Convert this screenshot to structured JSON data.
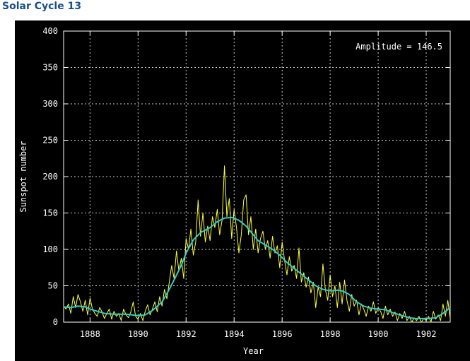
{
  "page": {
    "title": "Solar Cycle 13"
  },
  "chart_data": {
    "type": "line",
    "title": "",
    "xlabel": "Year",
    "ylabel": "Sunspot number",
    "annotation": "Amplitude = 146.5",
    "xlim": [
      1886.9,
      1903.0
    ],
    "ylim": [
      0,
      400
    ],
    "x_ticks": [
      1888,
      1890,
      1892,
      1894,
      1896,
      1898,
      1900,
      1902
    ],
    "y_ticks": [
      0,
      50,
      100,
      150,
      200,
      250,
      300,
      350,
      400
    ],
    "grid": true,
    "colors": {
      "background": "#000000",
      "monthly": "#ffff33",
      "smoothed": "#33cccc",
      "text": "#ffffff",
      "grid": "#cccccc"
    },
    "series": [
      {
        "key": "monthly",
        "points": [
          [
            1886.9,
            22
          ],
          [
            1887.0,
            18
          ],
          [
            1887.1,
            25
          ],
          [
            1887.2,
            12
          ],
          [
            1887.3,
            35
          ],
          [
            1887.4,
            20
          ],
          [
            1887.5,
            38
          ],
          [
            1887.6,
            28
          ],
          [
            1887.7,
            15
          ],
          [
            1887.8,
            30
          ],
          [
            1887.9,
            10
          ],
          [
            1888.0,
            33
          ],
          [
            1888.1,
            18
          ],
          [
            1888.2,
            12
          ],
          [
            1888.3,
            8
          ],
          [
            1888.4,
            20
          ],
          [
            1888.5,
            14
          ],
          [
            1888.6,
            5
          ],
          [
            1888.7,
            12
          ],
          [
            1888.8,
            18
          ],
          [
            1888.9,
            4
          ],
          [
            1889.0,
            15
          ],
          [
            1889.1,
            8
          ],
          [
            1889.2,
            12
          ],
          [
            1889.3,
            2
          ],
          [
            1889.4,
            18
          ],
          [
            1889.5,
            10
          ],
          [
            1889.6,
            6
          ],
          [
            1889.7,
            14
          ],
          [
            1889.8,
            28
          ],
          [
            1889.9,
            8
          ],
          [
            1890.0,
            4
          ],
          [
            1890.1,
            12
          ],
          [
            1890.2,
            2
          ],
          [
            1890.3,
            15
          ],
          [
            1890.4,
            24
          ],
          [
            1890.5,
            10
          ],
          [
            1890.6,
            18
          ],
          [
            1890.7,
            28
          ],
          [
            1890.8,
            14
          ],
          [
            1890.9,
            35
          ],
          [
            1891.0,
            22
          ],
          [
            1891.1,
            45
          ],
          [
            1891.2,
            32
          ],
          [
            1891.3,
            55
          ],
          [
            1891.4,
            78
          ],
          [
            1891.5,
            60
          ],
          [
            1891.6,
            98
          ],
          [
            1891.7,
            70
          ],
          [
            1891.8,
            88
          ],
          [
            1891.9,
            60
          ],
          [
            1892.0,
            115
          ],
          [
            1892.1,
            100
          ],
          [
            1892.2,
            128
          ],
          [
            1892.3,
            92
          ],
          [
            1892.4,
            110
          ],
          [
            1892.5,
            168
          ],
          [
            1892.6,
            118
          ],
          [
            1892.7,
            150
          ],
          [
            1892.8,
            110
          ],
          [
            1892.9,
            132
          ],
          [
            1893.0,
            112
          ],
          [
            1893.1,
            145
          ],
          [
            1893.2,
            130
          ],
          [
            1893.3,
            155
          ],
          [
            1893.4,
            120
          ],
          [
            1893.5,
            140
          ],
          [
            1893.6,
            215
          ],
          [
            1893.7,
            145
          ],
          [
            1893.8,
            170
          ],
          [
            1893.9,
            115
          ],
          [
            1894.0,
            155
          ],
          [
            1894.1,
            130
          ],
          [
            1894.2,
            95
          ],
          [
            1894.3,
            120
          ],
          [
            1894.4,
            168
          ],
          [
            1894.5,
            175
          ],
          [
            1894.6,
            120
          ],
          [
            1894.7,
            145
          ],
          [
            1894.8,
            100
          ],
          [
            1894.9,
            128
          ],
          [
            1895.0,
            95
          ],
          [
            1895.1,
            115
          ],
          [
            1895.2,
            125
          ],
          [
            1895.3,
            100
          ],
          [
            1895.4,
            112
          ],
          [
            1895.5,
            88
          ],
          [
            1895.6,
            118
          ],
          [
            1895.7,
            95
          ],
          [
            1895.8,
            105
          ],
          [
            1895.9,
            75
          ],
          [
            1896.0,
            110
          ],
          [
            1896.1,
            85
          ],
          [
            1896.2,
            65
          ],
          [
            1896.3,
            90
          ],
          [
            1896.4,
            70
          ],
          [
            1896.5,
            78
          ],
          [
            1896.6,
            60
          ],
          [
            1896.7,
            102
          ],
          [
            1896.8,
            55
          ],
          [
            1896.9,
            68
          ],
          [
            1897.0,
            48
          ],
          [
            1897.1,
            62
          ],
          [
            1897.2,
            40
          ],
          [
            1897.3,
            55
          ],
          [
            1897.4,
            20
          ],
          [
            1897.5,
            48
          ],
          [
            1897.6,
            35
          ],
          [
            1897.7,
            80
          ],
          [
            1897.8,
            45
          ],
          [
            1897.9,
            30
          ],
          [
            1898.0,
            65
          ],
          [
            1898.1,
            35
          ],
          [
            1898.2,
            50
          ],
          [
            1898.3,
            20
          ],
          [
            1898.4,
            55
          ],
          [
            1898.5,
            25
          ],
          [
            1898.6,
            58
          ],
          [
            1898.7,
            30
          ],
          [
            1898.8,
            15
          ],
          [
            1898.9,
            38
          ],
          [
            1899.0,
            22
          ],
          [
            1899.1,
            30
          ],
          [
            1899.2,
            10
          ],
          [
            1899.3,
            25
          ],
          [
            1899.4,
            18
          ],
          [
            1899.5,
            8
          ],
          [
            1899.6,
            22
          ],
          [
            1899.7,
            15
          ],
          [
            1899.8,
            28
          ],
          [
            1899.9,
            12
          ],
          [
            1900.0,
            20
          ],
          [
            1900.1,
            15
          ],
          [
            1900.2,
            5
          ],
          [
            1900.3,
            22
          ],
          [
            1900.4,
            10
          ],
          [
            1900.5,
            18
          ],
          [
            1900.6,
            8
          ],
          [
            1900.7,
            14
          ],
          [
            1900.8,
            2
          ],
          [
            1900.9,
            12
          ],
          [
            1901.0,
            5
          ],
          [
            1901.1,
            15
          ],
          [
            1901.2,
            2
          ],
          [
            1901.3,
            8
          ],
          [
            1901.4,
            0
          ],
          [
            1901.5,
            6
          ],
          [
            1901.6,
            2
          ],
          [
            1901.7,
            8
          ],
          [
            1901.8,
            0
          ],
          [
            1901.9,
            5
          ],
          [
            1902.0,
            2
          ],
          [
            1902.1,
            8
          ],
          [
            1902.2,
            0
          ],
          [
            1902.3,
            15
          ],
          [
            1902.4,
            4
          ],
          [
            1902.5,
            10
          ],
          [
            1902.6,
            2
          ],
          [
            1902.7,
            25
          ],
          [
            1902.8,
            8
          ],
          [
            1902.9,
            30
          ],
          [
            1903.0,
            5
          ]
        ]
      },
      {
        "key": "smoothed",
        "points": [
          [
            1886.9,
            21
          ],
          [
            1887.2,
            20
          ],
          [
            1887.5,
            22
          ],
          [
            1887.8,
            21
          ],
          [
            1888.0,
            18
          ],
          [
            1888.3,
            15
          ],
          [
            1888.6,
            12
          ],
          [
            1889.0,
            11
          ],
          [
            1889.5,
            11
          ],
          [
            1890.0,
            9
          ],
          [
            1890.3,
            10
          ],
          [
            1890.6,
            16
          ],
          [
            1891.0,
            28
          ],
          [
            1891.3,
            45
          ],
          [
            1891.5,
            58
          ],
          [
            1891.8,
            78
          ],
          [
            1892.0,
            95
          ],
          [
            1892.3,
            113
          ],
          [
            1892.6,
            123
          ],
          [
            1893.0,
            130
          ],
          [
            1893.3,
            138
          ],
          [
            1893.6,
            143
          ],
          [
            1893.9,
            144
          ],
          [
            1894.2,
            140
          ],
          [
            1894.5,
            132
          ],
          [
            1894.8,
            120
          ],
          [
            1895.0,
            112
          ],
          [
            1895.3,
            106
          ],
          [
            1895.6,
            100
          ],
          [
            1895.9,
            92
          ],
          [
            1896.2,
            82
          ],
          [
            1896.5,
            74
          ],
          [
            1896.8,
            66
          ],
          [
            1897.1,
            58
          ],
          [
            1897.4,
            50
          ],
          [
            1897.7,
            45
          ],
          [
            1898.0,
            43
          ],
          [
            1898.3,
            44
          ],
          [
            1898.5,
            43
          ],
          [
            1898.8,
            38
          ],
          [
            1899.1,
            28
          ],
          [
            1899.4,
            22
          ],
          [
            1899.7,
            19
          ],
          [
            1900.0,
            18
          ],
          [
            1900.3,
            17
          ],
          [
            1900.6,
            13
          ],
          [
            1900.9,
            10
          ],
          [
            1901.2,
            7
          ],
          [
            1901.5,
            5
          ],
          [
            1901.8,
            5
          ],
          [
            1902.1,
            5
          ],
          [
            1902.4,
            6
          ],
          [
            1902.7,
            12
          ],
          [
            1903.0,
            20
          ]
        ]
      }
    ]
  }
}
